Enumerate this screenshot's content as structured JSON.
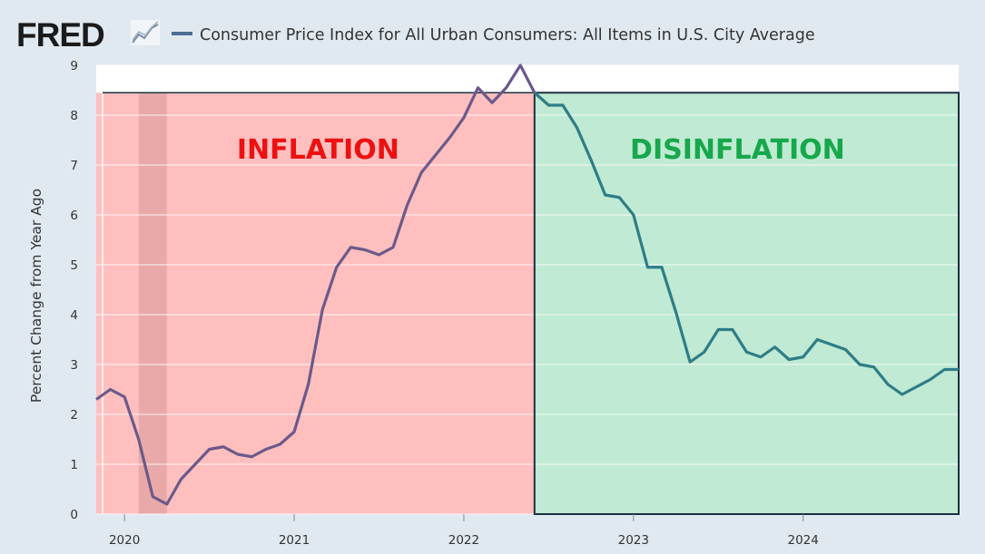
{
  "header": {
    "logo_text": "FRED",
    "logo_icon": "line-chart-icon",
    "legend_label": "Consumer Price Index for All Urban Consumers: All Items in U.S. City Average"
  },
  "colors": {
    "series": "#4a6e94",
    "line_inflation": "#6b5a8a",
    "line_disinflation": "#2e7d87",
    "inflation_fill": "#ffbfbf",
    "disinflation_fill": "#c0ead3",
    "recession_band": "#e9a9a9",
    "inflation_text": "#ee1111",
    "disinflation_text": "#16a84b",
    "boundary": "#1a3040"
  },
  "chart_data": {
    "type": "line",
    "title": "",
    "xlabel": "",
    "ylabel": "Percent Change from Year Ago",
    "ylim": [
      0,
      9
    ],
    "yticks": [
      0,
      1,
      2,
      3,
      4,
      5,
      6,
      7,
      8,
      9
    ],
    "xlim": [
      "2019-11",
      "2024-12"
    ],
    "xticks": [
      "2020",
      "2021",
      "2022",
      "2023",
      "2024"
    ],
    "grid": true,
    "recession_shading": {
      "start": "2020-02",
      "end": "2020-04"
    },
    "zones": [
      {
        "label": "INFLATION",
        "start": "2019-11",
        "end": "2022-06"
      },
      {
        "label": "DISINFLATION",
        "start": "2022-06",
        "end": "2024-12"
      }
    ],
    "series": [
      {
        "name": "Consumer Price Index for All Urban Consumers: All Items in U.S. City Average",
        "x": [
          "2019-11",
          "2019-12",
          "2020-01",
          "2020-02",
          "2020-03",
          "2020-04",
          "2020-05",
          "2020-06",
          "2020-07",
          "2020-08",
          "2020-09",
          "2020-10",
          "2020-11",
          "2020-12",
          "2021-01",
          "2021-02",
          "2021-03",
          "2021-04",
          "2021-05",
          "2021-06",
          "2021-07",
          "2021-08",
          "2021-09",
          "2021-10",
          "2021-11",
          "2021-12",
          "2022-01",
          "2022-02",
          "2022-03",
          "2022-04",
          "2022-05",
          "2022-06",
          "2022-07",
          "2022-08",
          "2022-09",
          "2022-10",
          "2022-11",
          "2022-12",
          "2023-01",
          "2023-02",
          "2023-03",
          "2023-04",
          "2023-05",
          "2023-06",
          "2023-07",
          "2023-08",
          "2023-09",
          "2023-10",
          "2023-11",
          "2023-12",
          "2024-01",
          "2024-02",
          "2024-03",
          "2024-04",
          "2024-05",
          "2024-06",
          "2024-07",
          "2024-08",
          "2024-09",
          "2024-10",
          "2024-11",
          "2024-12"
        ],
        "values": [
          2.3,
          2.5,
          2.35,
          1.5,
          0.35,
          0.2,
          0.7,
          1.0,
          1.3,
          1.35,
          1.2,
          1.15,
          1.3,
          1.4,
          1.65,
          2.6,
          4.1,
          4.95,
          5.35,
          5.3,
          5.2,
          5.35,
          6.2,
          6.85,
          7.2,
          7.55,
          7.95,
          8.55,
          8.25,
          8.55,
          9.0,
          8.45,
          8.2,
          8.2,
          7.75,
          7.1,
          6.4,
          6.35,
          6.0,
          4.95,
          4.95,
          4.05,
          3.05,
          3.25,
          3.7,
          3.7,
          3.25,
          3.15,
          3.35,
          3.1,
          3.15,
          3.5,
          3.4,
          3.3,
          3.0,
          2.95,
          2.6,
          2.4,
          2.55,
          2.7,
          2.9,
          2.9
        ]
      }
    ]
  }
}
